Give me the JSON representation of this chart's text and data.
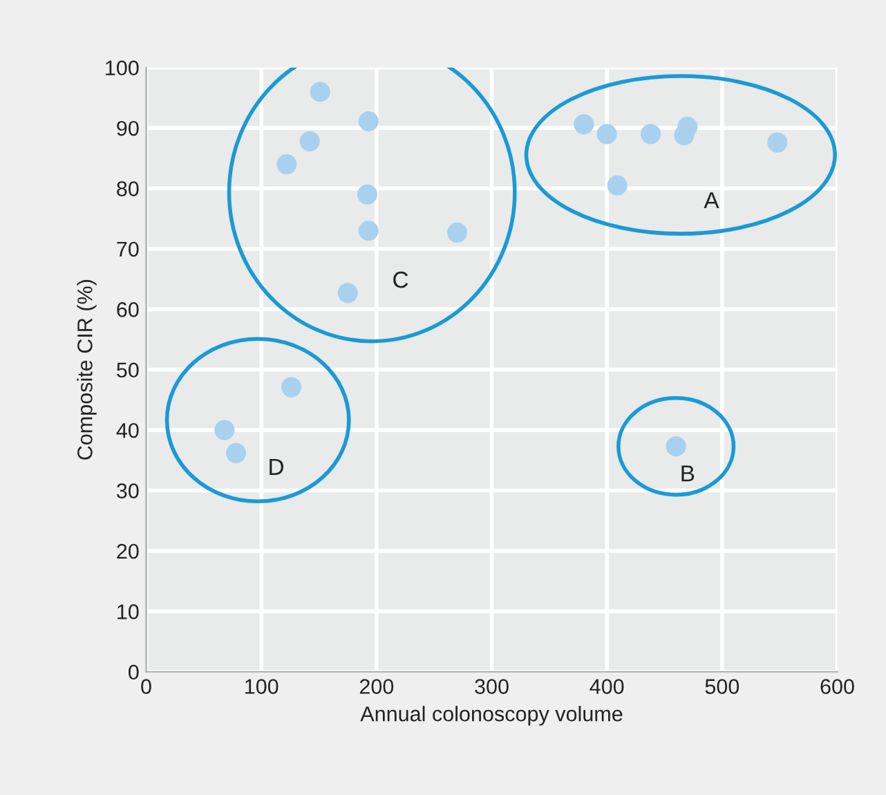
{
  "chart_data": {
    "type": "scatter",
    "xlabel": "Annual colonoscopy volume",
    "ylabel": "Composite CIR (%)",
    "xlim": [
      0,
      600
    ],
    "xticks": [
      0,
      100,
      200,
      300,
      400,
      500,
      600
    ],
    "ylim": [
      0,
      100
    ],
    "yticks": [
      0,
      10,
      20,
      30,
      40,
      50,
      60,
      70,
      80,
      90,
      100
    ],
    "grid": true,
    "marker": "circle",
    "legend": false,
    "series": [
      {
        "name": "A",
        "color": "#a8d1f0",
        "x": [
          380,
          400,
          438,
          470,
          467,
          548,
          409
        ],
        "values": [
          90.6,
          89.0,
          89.0,
          90.2,
          88.8,
          87.6,
          80.5
        ]
      },
      {
        "name": "B",
        "color": "#a8d1f0",
        "x": [
          460
        ],
        "values": [
          37.3
        ]
      },
      {
        "name": "C",
        "color": "#a8d1f0",
        "x": [
          151,
          193,
          142,
          122,
          192,
          193,
          270,
          175
        ],
        "values": [
          96.0,
          91.1,
          87.8,
          84.0,
          79.0,
          73.0,
          72.7,
          62.7
        ]
      },
      {
        "name": "D",
        "color": "#a8d1f0",
        "x": [
          68,
          78,
          126
        ],
        "values": [
          40.0,
          36.2,
          47.1
        ]
      }
    ]
  }
}
